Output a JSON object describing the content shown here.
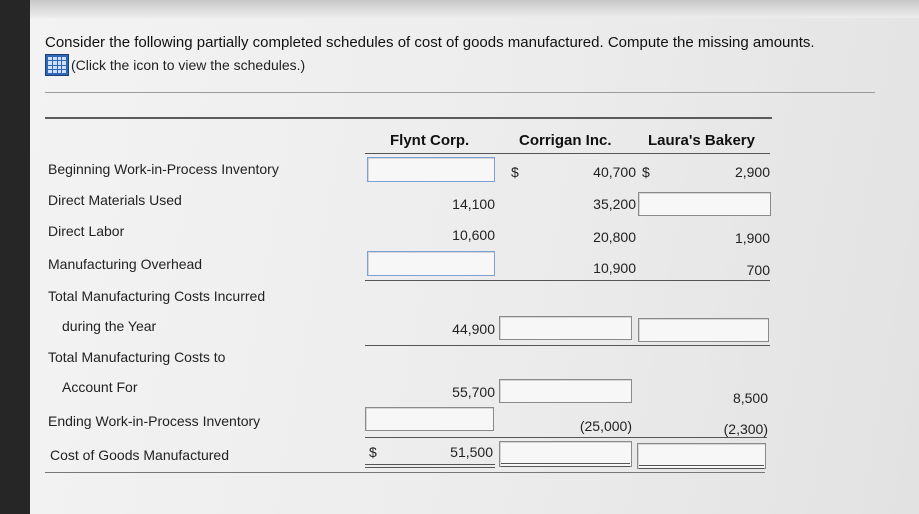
{
  "instructions": "Consider the following partially completed schedules of cost of goods manufactured. Compute the missing amounts.",
  "schedules_link": "(Click the icon to view the schedules.)",
  "icons": {
    "schedule": "table-grid-icon"
  },
  "columns": [
    "Flynt Corp.",
    "Corrigan Inc.",
    "Laura's Bakery"
  ],
  "currency": "$",
  "rows": {
    "beginning_wip": {
      "label": "Beginning Work-in-Process Inventory",
      "flynt": "",
      "corrigan": "40,700",
      "laura": "2,900"
    },
    "direct_materials": {
      "label": "Direct Materials Used",
      "flynt": "14,100",
      "corrigan": "35,200",
      "laura": ""
    },
    "direct_labor": {
      "label": "Direct Labor",
      "flynt": "10,600",
      "corrigan": "20,800",
      "laura": "1,900"
    },
    "manufacturing_overhead": {
      "label": "Manufacturing Overhead",
      "flynt": "",
      "corrigan": "10,900",
      "laura": "700"
    },
    "total_incurred": {
      "label_line1": "Total Manufacturing Costs Incurred",
      "label_line2": "during the Year",
      "flynt": "44,900",
      "corrigan": "",
      "laura": ""
    },
    "total_account_for": {
      "label_line1": "Total Manufacturing Costs to",
      "label_line2": "Account For",
      "flynt": "55,700",
      "corrigan": "",
      "laura": "8,500"
    },
    "ending_wip": {
      "label": "Ending Work-in-Process Inventory",
      "flynt": "",
      "corrigan": "(25,000)",
      "laura": "(2,300)"
    },
    "cogm": {
      "label": "Cost of Goods Manufactured",
      "flynt": "51,500",
      "corrigan": "",
      "laura": ""
    }
  }
}
